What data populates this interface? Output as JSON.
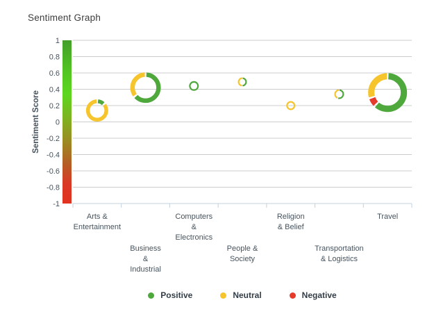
{
  "title": "Sentiment Graph",
  "chart_data": {
    "type": "scatter",
    "marker_style": "donut",
    "title": "Sentiment Graph",
    "xlabel": "",
    "ylabel": "Sentiment Score",
    "ylim": [
      -1,
      1
    ],
    "yticks": [
      1,
      0.8,
      0.6,
      0.4,
      0.2,
      0,
      -0.2,
      -0.4,
      -0.6,
      -0.8,
      -1
    ],
    "grid": true,
    "legend_position": "bottom",
    "categories": [
      "Arts & Entertainment",
      "Business & Industrial",
      "Computers & Electronics",
      "People & Society",
      "Religion & Belief",
      "Transportation & Logistics",
      "Travel"
    ],
    "points": [
      {
        "category": "Arts & Entertainment",
        "label_lines": [
          "Arts &",
          "Entertainment"
        ],
        "label_row": "upper",
        "score": 0.14,
        "outer_radius": 16,
        "ring_thickness": 5.5,
        "segments": [
          {
            "sentiment": "positive",
            "fraction": 0.13
          },
          {
            "sentiment": "neutral",
            "fraction": 0.87
          }
        ]
      },
      {
        "category": "Business & Industrial",
        "label_lines": [
          "Business",
          "&",
          "Industrial"
        ],
        "label_row": "lower",
        "score": 0.42,
        "outer_radius": 22,
        "ring_thickness": 6.5,
        "segments": [
          {
            "sentiment": "positive",
            "fraction": 0.64
          },
          {
            "sentiment": "neutral",
            "fraction": 0.36
          }
        ]
      },
      {
        "category": "Computers & Electronics",
        "label_lines": [
          "Computers",
          "&",
          "Electronics"
        ],
        "label_row": "upper",
        "score": 0.44,
        "outer_radius": 7,
        "ring_thickness": 2.2,
        "segments": [
          {
            "sentiment": "positive",
            "fraction": 1.0
          }
        ]
      },
      {
        "category": "People & Society",
        "label_lines": [
          "People &",
          "Society"
        ],
        "label_row": "lower",
        "score": 0.49,
        "outer_radius": 6.5,
        "ring_thickness": 2.2,
        "segments": [
          {
            "sentiment": "positive",
            "fraction": 0.5
          },
          {
            "sentiment": "neutral",
            "fraction": 0.5
          }
        ]
      },
      {
        "category": "Religion & Belief",
        "label_lines": [
          "Religion",
          "& Belief"
        ],
        "label_row": "upper",
        "score": 0.2,
        "outer_radius": 6.5,
        "ring_thickness": 2.2,
        "segments": [
          {
            "sentiment": "neutral",
            "fraction": 1.0
          }
        ]
      },
      {
        "category": "Transportation & Logistics",
        "label_lines": [
          "Transportation",
          "& Logistics"
        ],
        "label_row": "lower",
        "score": 0.34,
        "outer_radius": 7,
        "ring_thickness": 2.2,
        "segments": [
          {
            "sentiment": "positive",
            "fraction": 0.55
          },
          {
            "sentiment": "neutral",
            "fraction": 0.45
          }
        ]
      },
      {
        "category": "Travel",
        "label_lines": [
          "Travel"
        ],
        "label_row": "upper",
        "score": 0.36,
        "outer_radius": 28,
        "ring_thickness": 9,
        "segments": [
          {
            "sentiment": "positive",
            "fraction": 0.62
          },
          {
            "sentiment": "negative",
            "fraction": 0.08
          },
          {
            "sentiment": "neutral",
            "fraction": 0.3
          }
        ]
      }
    ],
    "legend": [
      {
        "label": "Positive",
        "sentiment": "positive"
      },
      {
        "label": "Neutral",
        "sentiment": "neutral"
      },
      {
        "label": "Negative",
        "sentiment": "negative"
      }
    ],
    "colors": {
      "positive": "#4fa83c",
      "neutral": "#f6c52d",
      "negative": "#e63a2b",
      "gridline": "#cccccc",
      "axis_line": "#c3d2de",
      "tick_text": "#46535e",
      "title_text": "#3d3d3d",
      "legend_text": "#333d47",
      "gradient_stops": [
        {
          "offset": 0,
          "color": "#459f2b"
        },
        {
          "offset": 0.2,
          "color": "#52c621"
        },
        {
          "offset": 0.33,
          "color": "#5cd61e"
        },
        {
          "offset": 0.5,
          "color": "#83ad21"
        },
        {
          "offset": 0.62,
          "color": "#9b8a23"
        },
        {
          "offset": 0.76,
          "color": "#b55d24"
        },
        {
          "offset": 0.88,
          "color": "#da3826"
        },
        {
          "offset": 1,
          "color": "#e0331f"
        }
      ]
    }
  }
}
